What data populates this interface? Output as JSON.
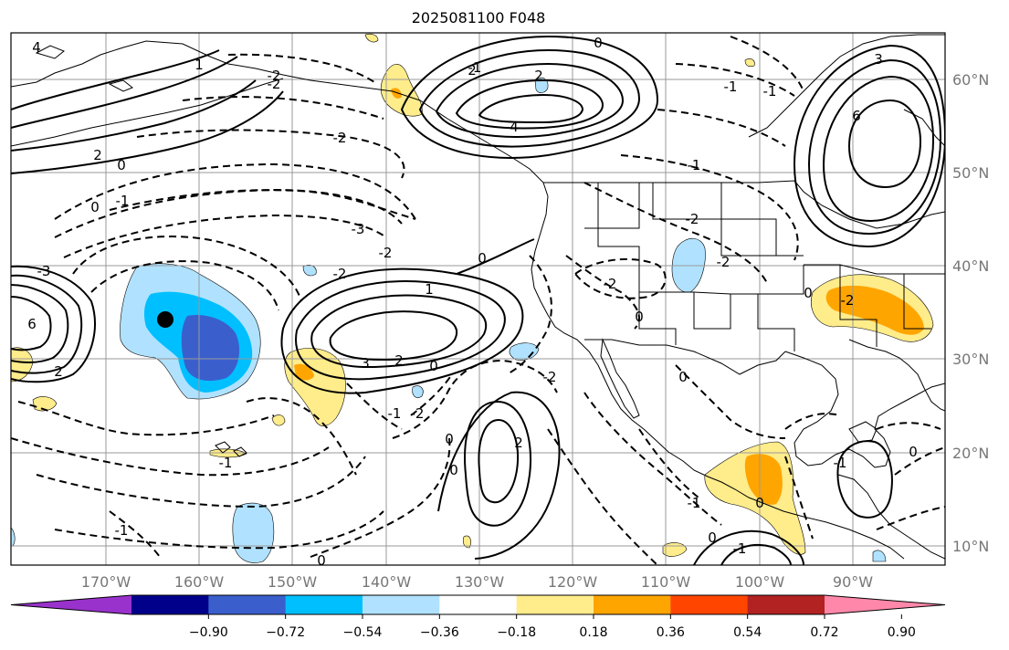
{
  "title": "2025081100 F048",
  "map": {
    "lat_ticks": [
      "60°N",
      "50°N",
      "40°N",
      "30°N",
      "20°N",
      "10°N"
    ],
    "lon_ticks": [
      "170°W",
      "160°W",
      "150°W",
      "140°W",
      "130°W",
      "120°W",
      "110°W",
      "100°W",
      "90°W"
    ],
    "gridline_color": "#999999",
    "storm_marker": "filled-black-circle"
  },
  "colorbar": {
    "ticks": [
      "−0.90",
      "−0.72",
      "−0.54",
      "−0.36",
      "−0.18",
      "0.18",
      "0.36",
      "0.54",
      "0.72",
      "0.90"
    ],
    "colors": [
      "#9932CC",
      "#00008B",
      "#3A5FCD",
      "#00BFFF",
      "#B0E2FF",
      "#FFFFFF",
      "#FFEC8B",
      "#FFA500",
      "#FF4500",
      "#B22222",
      "#FF88AA"
    ],
    "extend": "both"
  },
  "contour_labels": [
    {
      "text": "4"
    },
    {
      "text": "2"
    },
    {
      "text": "0"
    },
    {
      "text": "-2"
    },
    {
      "text": "-2"
    },
    {
      "text": "0"
    },
    {
      "text": "-1"
    },
    {
      "text": "-3"
    },
    {
      "text": "-2"
    },
    {
      "text": "-2"
    },
    {
      "text": "0"
    },
    {
      "text": "1"
    },
    {
      "text": "3"
    },
    {
      "text": "2"
    },
    {
      "text": "-1"
    },
    {
      "text": "2"
    },
    {
      "text": "4"
    },
    {
      "text": "6"
    },
    {
      "text": "2"
    },
    {
      "text": "-3"
    },
    {
      "text": "-2"
    },
    {
      "text": "0"
    },
    {
      "text": "0"
    },
    {
      "text": "-2"
    },
    {
      "text": "-1"
    },
    {
      "text": "-2"
    },
    {
      "text": "-1"
    },
    {
      "text": "0"
    },
    {
      "text": "-1"
    },
    {
      "text": "-1"
    },
    {
      "text": "-1"
    },
    {
      "text": "0"
    },
    {
      "text": "-2"
    },
    {
      "text": "-2"
    },
    {
      "text": "0"
    },
    {
      "text": "2"
    },
    {
      "text": "-1"
    },
    {
      "text": "0"
    },
    {
      "text": "-1"
    },
    {
      "text": "0"
    },
    {
      "text": "3"
    },
    {
      "text": "6"
    },
    {
      "text": "0"
    },
    {
      "text": "-2"
    },
    {
      "text": "-1"
    },
    {
      "text": "0"
    },
    {
      "text": "-1"
    },
    {
      "text": "2"
    },
    {
      "text": "0"
    },
    {
      "text": "1"
    },
    {
      "text": "-2"
    },
    {
      "text": "0"
    }
  ]
}
